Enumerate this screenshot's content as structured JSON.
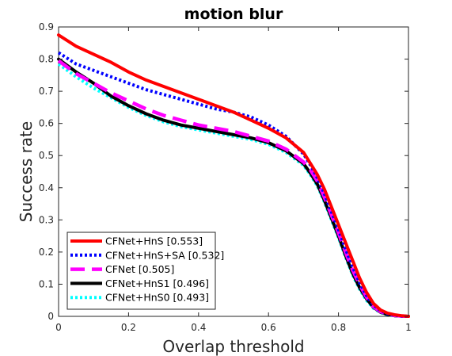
{
  "chart_data": {
    "type": "line",
    "title": "motion blur",
    "xlabel": "Overlap threshold",
    "ylabel": "Success rate",
    "xlim": [
      0,
      1
    ],
    "ylim": [
      0,
      0.9
    ],
    "xticks": [
      0,
      0.2,
      0.4,
      0.6,
      0.8,
      1
    ],
    "xtick_labels": [
      "0",
      "0.2",
      "0.4",
      "0.6",
      "0.8",
      "1"
    ],
    "yticks": [
      0,
      0.1,
      0.2,
      0.3,
      0.4,
      0.5,
      0.6,
      0.7,
      0.8,
      0.9
    ],
    "ytick_labels": [
      "0",
      "0.1",
      "0.2",
      "0.3",
      "0.4",
      "0.5",
      "0.6",
      "0.7",
      "0.8",
      "0.9"
    ],
    "grid": false,
    "legend_position": "bottom-left",
    "x": [
      0,
      0.05,
      0.1,
      0.15,
      0.2,
      0.25,
      0.3,
      0.35,
      0.4,
      0.45,
      0.5,
      0.55,
      0.6,
      0.65,
      0.7,
      0.72,
      0.74,
      0.76,
      0.78,
      0.8,
      0.82,
      0.84,
      0.86,
      0.88,
      0.9,
      0.92,
      0.94,
      0.96,
      0.98,
      1.0
    ],
    "series": [
      {
        "name": "CFNet+HnS [0.553]",
        "color": "#ff0000",
        "style": "solid",
        "values": [
          0.875,
          0.84,
          0.815,
          0.79,
          0.76,
          0.735,
          0.715,
          0.695,
          0.675,
          0.655,
          0.635,
          0.61,
          0.585,
          0.555,
          0.51,
          0.475,
          0.44,
          0.395,
          0.34,
          0.285,
          0.23,
          0.175,
          0.12,
          0.075,
          0.04,
          0.02,
          0.01,
          0.005,
          0.002,
          0.0
        ]
      },
      {
        "name": "CFNet+HnS+SA [0.532]",
        "color": "#0000ff",
        "style": "dotted",
        "values": [
          0.82,
          0.785,
          0.765,
          0.745,
          0.725,
          0.705,
          0.69,
          0.675,
          0.66,
          0.645,
          0.635,
          0.62,
          0.595,
          0.56,
          0.505,
          0.47,
          0.43,
          0.38,
          0.325,
          0.27,
          0.21,
          0.155,
          0.105,
          0.065,
          0.035,
          0.018,
          0.008,
          0.004,
          0.001,
          0.0
        ]
      },
      {
        "name": "CFNet [0.505]",
        "color": "#ff00ff",
        "style": "dashed",
        "values": [
          0.795,
          0.755,
          0.725,
          0.695,
          0.67,
          0.645,
          0.625,
          0.61,
          0.595,
          0.585,
          0.575,
          0.56,
          0.545,
          0.52,
          0.48,
          0.455,
          0.42,
          0.37,
          0.315,
          0.26,
          0.2,
          0.145,
          0.1,
          0.06,
          0.03,
          0.015,
          0.007,
          0.003,
          0.001,
          0.0
        ]
      },
      {
        "name": "CFNet+HnS1 [0.496]",
        "color": "#000000",
        "style": "solid",
        "values": [
          0.8,
          0.76,
          0.725,
          0.685,
          0.655,
          0.63,
          0.61,
          0.595,
          0.585,
          0.575,
          0.565,
          0.555,
          0.54,
          0.515,
          0.475,
          0.445,
          0.41,
          0.36,
          0.305,
          0.25,
          0.19,
          0.135,
          0.09,
          0.055,
          0.028,
          0.013,
          0.006,
          0.002,
          0.001,
          0.0
        ]
      },
      {
        "name": "CFNet+HnS0 [0.493]",
        "color": "#00ffff",
        "style": "dotted",
        "values": [
          0.785,
          0.745,
          0.71,
          0.68,
          0.65,
          0.625,
          0.605,
          0.59,
          0.58,
          0.57,
          0.56,
          0.55,
          0.535,
          0.51,
          0.47,
          0.44,
          0.405,
          0.355,
          0.3,
          0.245,
          0.185,
          0.13,
          0.085,
          0.05,
          0.025,
          0.012,
          0.005,
          0.002,
          0.001,
          0.0
        ]
      }
    ]
  }
}
